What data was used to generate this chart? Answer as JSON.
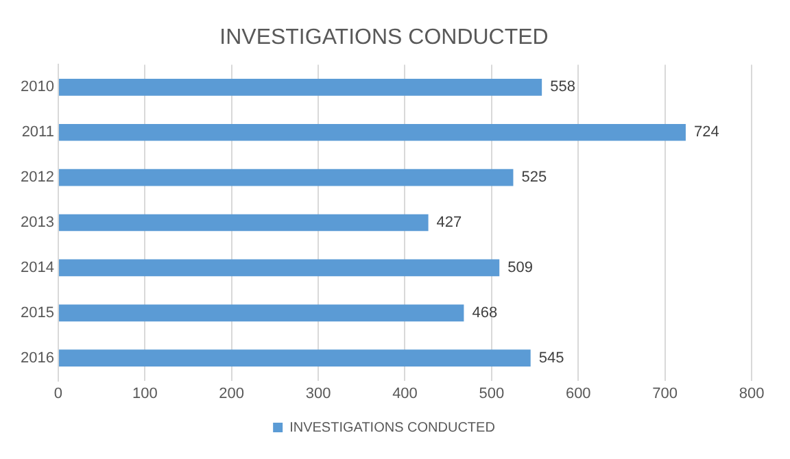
{
  "chart_data": {
    "type": "bar",
    "orientation": "horizontal",
    "title": "INVESTIGATIONS CONDUCTED",
    "categories": [
      "2010",
      "2011",
      "2012",
      "2013",
      "2014",
      "2015",
      "2016"
    ],
    "series": [
      {
        "name": "INVESTIGATIONS CONDUCTED",
        "color": "#5b9bd5",
        "values": [
          558,
          724,
          525,
          427,
          509,
          468,
          545
        ]
      }
    ],
    "xlim": [
      0,
      800
    ],
    "xticks": [
      0,
      100,
      200,
      300,
      400,
      500,
      600,
      700,
      800
    ],
    "grid": "x",
    "legend": "bottom",
    "data_labels": true
  }
}
